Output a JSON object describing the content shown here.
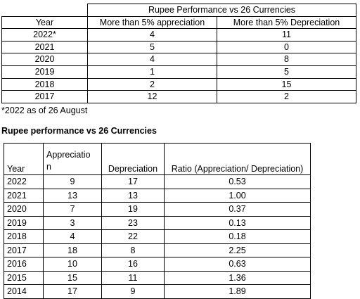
{
  "table1": {
    "title": "Rupee Performance vs 26 Currencies",
    "headers": [
      "Year",
      "More than 5% appreciation",
      "More than 5% Depreciation"
    ],
    "rows": [
      [
        "2022*",
        "4",
        "11"
      ],
      [
        "2021",
        "5",
        "0"
      ],
      [
        "2020",
        "4",
        "8"
      ],
      [
        "2019",
        "1",
        "5"
      ],
      [
        "2018",
        "2",
        "15"
      ],
      [
        "2017",
        "12",
        "2"
      ]
    ],
    "footnote": "*2022 as of 26 August"
  },
  "table2": {
    "heading": "Rupee performance vs 26 Currencies",
    "headers": [
      "Year",
      "Appreciation",
      "Depreciation",
      "Ratio (Appreciation/ Depreciation)"
    ],
    "header_appr_line1": "Appreciatio",
    "header_appr_line2": "n",
    "rows": [
      [
        "2022",
        "9",
        "17",
        "0.53"
      ],
      [
        "2021",
        "13",
        "13",
        "1.00"
      ],
      [
        "2020",
        "7",
        "19",
        "0.37"
      ],
      [
        "2019",
        "3",
        "23",
        "0.13"
      ],
      [
        "2018",
        "4",
        "22",
        "0.18"
      ],
      [
        "2017",
        "18",
        "8",
        "2.25"
      ],
      [
        "2016",
        "10",
        "16",
        "0.63"
      ],
      [
        "2015",
        "15",
        "11",
        "1.36"
      ],
      [
        "2014",
        "17",
        "9",
        "1.89"
      ]
    ]
  }
}
